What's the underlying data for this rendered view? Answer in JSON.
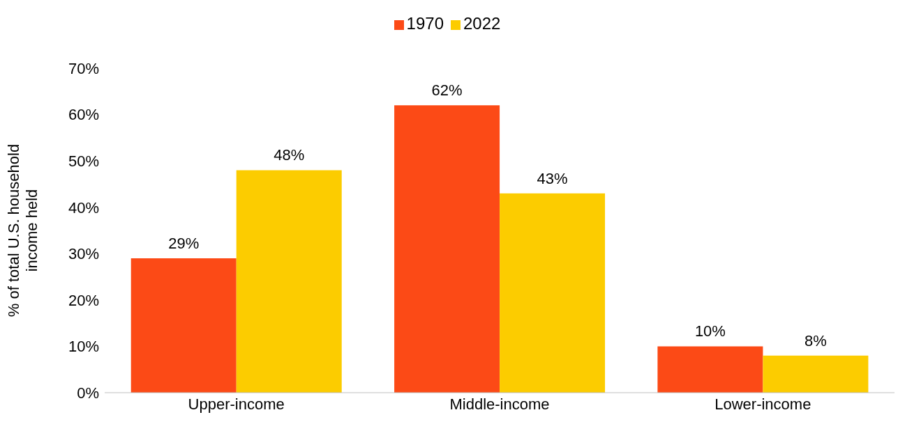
{
  "chart_data": {
    "type": "bar",
    "ylabel": "% of total U.S. household income held",
    "categories": [
      "Upper-income",
      "Middle-income",
      "Lower-income"
    ],
    "series": [
      {
        "name": "1970",
        "color": "#fc4a16",
        "values": [
          29,
          62,
          10
        ],
        "value_labels": [
          "29%",
          "62%",
          "10%"
        ]
      },
      {
        "name": "2022",
        "color": "#fccc00",
        "values": [
          48,
          43,
          8
        ],
        "value_labels": [
          "48%",
          "43%",
          "8%"
        ]
      }
    ],
    "ylim": [
      0,
      70
    ],
    "yticks": [
      {
        "value": 0,
        "label": "0%"
      },
      {
        "value": 10,
        "label": "10%"
      },
      {
        "value": 20,
        "label": "20%"
      },
      {
        "value": 30,
        "label": "30%"
      },
      {
        "value": 40,
        "label": "40%"
      },
      {
        "value": 50,
        "label": "50%"
      },
      {
        "value": 60,
        "label": "60%"
      },
      {
        "value": 70,
        "label": "70%"
      }
    ],
    "grid": false,
    "legend": "top"
  }
}
